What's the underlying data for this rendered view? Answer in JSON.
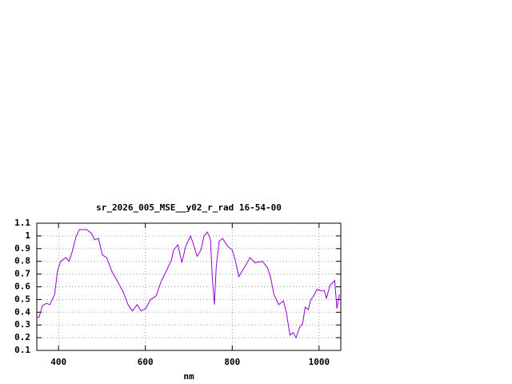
{
  "chart_data": {
    "type": "line",
    "title": "sr_2026_005_MSE__y02_r_rad 16-54-00",
    "x_label": "nm",
    "x": [
      350,
      355,
      363,
      372,
      380,
      383,
      391,
      398,
      405,
      417,
      424,
      431,
      440,
      448,
      465,
      476,
      483,
      492,
      501,
      511,
      523,
      538,
      549,
      560,
      570,
      581,
      590,
      601,
      612,
      625,
      636,
      649,
      660,
      665,
      675,
      684,
      693,
      704,
      712,
      719,
      728,
      735,
      743,
      750,
      754,
      759,
      763,
      770,
      778,
      789,
      800,
      807,
      815,
      826,
      841,
      852,
      870,
      881,
      888,
      896,
      907,
      918,
      925,
      933,
      940,
      947,
      955,
      962,
      968,
      975,
      981,
      988,
      995,
      1003,
      1012,
      1017,
      1025,
      1036,
      1041,
      1047
    ],
    "series": [
      {
        "name": "sr_2026_005_MSE__y02_r_rad",
        "color": "#9400d3",
        "values": [
          0.36,
          0.36,
          0.45,
          0.47,
          0.46,
          0.48,
          0.54,
          0.73,
          0.8,
          0.83,
          0.8,
          0.87,
          0.99,
          1.05,
          1.05,
          1.02,
          0.97,
          0.98,
          0.85,
          0.83,
          0.72,
          0.63,
          0.56,
          0.46,
          0.41,
          0.46,
          0.41,
          0.43,
          0.5,
          0.53,
          0.64,
          0.73,
          0.81,
          0.89,
          0.93,
          0.79,
          0.92,
          1.0,
          0.92,
          0.84,
          0.89,
          1.0,
          1.03,
          0.97,
          0.68,
          0.46,
          0.75,
          0.96,
          0.98,
          0.92,
          0.89,
          0.81,
          0.68,
          0.74,
          0.83,
          0.79,
          0.8,
          0.75,
          0.68,
          0.54,
          0.46,
          0.49,
          0.39,
          0.22,
          0.24,
          0.2,
          0.28,
          0.31,
          0.44,
          0.42,
          0.5,
          0.53,
          0.58,
          0.57,
          0.57,
          0.51,
          0.61,
          0.65,
          0.43,
          0.54
        ]
      }
    ],
    "xlim": [
      350,
      1050
    ],
    "xticks": [
      400,
      600,
      800,
      1000
    ],
    "ylim": [
      0.1,
      1.1
    ],
    "yticks": [
      0.1,
      0.2,
      0.3,
      0.4,
      0.5,
      0.6,
      0.7,
      0.8,
      0.9,
      1,
      1.1
    ],
    "grid": true
  }
}
